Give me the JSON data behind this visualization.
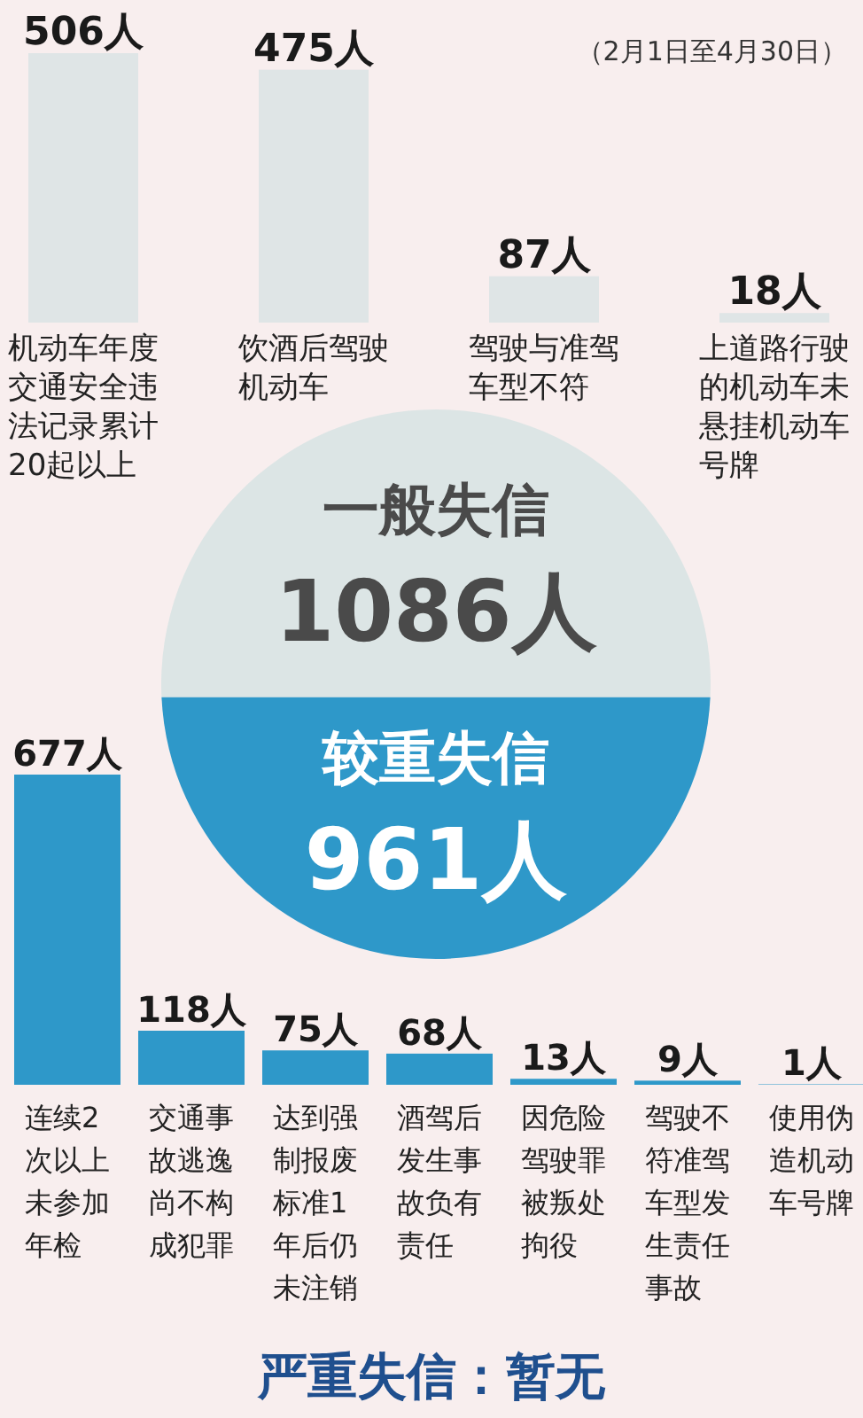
{
  "chart_data": [
    {
      "type": "bar",
      "subtitle": "（2月1日至4月30日）",
      "color": "#dfe5e6",
      "categories": [
        "机动车年度交通安全违法记录累计20起以上",
        "饮酒后驾驶机动车",
        "驾驶与准驾车型不符",
        "上道路行驶的机动车未悬挂机动车号牌"
      ],
      "values": [
        506,
        475,
        87,
        18
      ],
      "value_labels": [
        "506人",
        "475人",
        "87人",
        "18人"
      ]
    },
    {
      "type": "pie",
      "categories": [
        "一般失信",
        "较重失信"
      ],
      "values": [
        1086,
        961
      ],
      "colors": [
        "#dce5e5",
        "#2e98c9"
      ],
      "value_labels": [
        "1086人",
        "961人"
      ]
    },
    {
      "type": "bar",
      "color": "#2e98c9",
      "categories": [
        "连续2次以上未参加年检",
        "交通事故逃逸尚不构成犯罪",
        "达到强制报废标准1年后仍未注销",
        "酒驾后发生事故负有责任",
        "因危险驾驶罪被叛处拘役",
        "驾驶不符准驾车型发生责任事故",
        "使用伪造机动车号牌"
      ],
      "values": [
        677,
        118,
        75,
        68,
        13,
        9,
        1
      ],
      "value_labels": [
        "677人",
        "118人",
        "75人",
        "68人",
        "13人",
        "9人",
        "1人"
      ],
      "annotations": [
        "严重失信：暂无"
      ]
    }
  ]
}
